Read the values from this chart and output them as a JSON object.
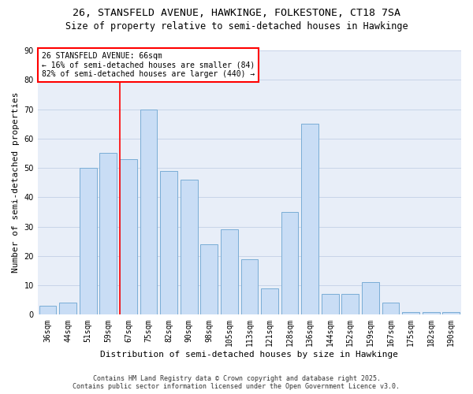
{
  "title_line1": "26, STANSFELD AVENUE, HAWKINGE, FOLKESTONE, CT18 7SA",
  "title_line2": "Size of property relative to semi-detached houses in Hawkinge",
  "xlabel": "Distribution of semi-detached houses by size in Hawkinge",
  "ylabel": "Number of semi-detached properties",
  "categories": [
    "36sqm",
    "44sqm",
    "51sqm",
    "59sqm",
    "67sqm",
    "75sqm",
    "82sqm",
    "90sqm",
    "98sqm",
    "105sqm",
    "113sqm",
    "121sqm",
    "128sqm",
    "136sqm",
    "144sqm",
    "152sqm",
    "159sqm",
    "167sqm",
    "175sqm",
    "182sqm",
    "190sqm"
  ],
  "values": [
    3,
    4,
    50,
    55,
    53,
    70,
    49,
    46,
    24,
    29,
    19,
    9,
    35,
    65,
    7,
    7,
    11,
    4,
    1,
    1,
    1
  ],
  "bar_color": "#c9ddf5",
  "bar_edge_color": "#7aadd6",
  "vline_index": 4,
  "vline_color": "red",
  "annotation_title": "26 STANSFELD AVENUE: 66sqm",
  "annotation_line1": "← 16% of semi-detached houses are smaller (84)",
  "annotation_line2": "82% of semi-detached houses are larger (440) →",
  "ylim": [
    0,
    90
  ],
  "yticks": [
    0,
    10,
    20,
    30,
    40,
    50,
    60,
    70,
    80,
    90
  ],
  "grid_color": "#c8d4e8",
  "bg_color": "#e8eef8",
  "footer_line1": "Contains HM Land Registry data © Crown copyright and database right 2025.",
  "footer_line2": "Contains public sector information licensed under the Open Government Licence v3.0.",
  "title_fontsize": 9.5,
  "subtitle_fontsize": 8.5,
  "ylabel_fontsize": 8,
  "xlabel_fontsize": 8,
  "tick_fontsize": 7,
  "annotation_fontsize": 7,
  "footer_fontsize": 6
}
